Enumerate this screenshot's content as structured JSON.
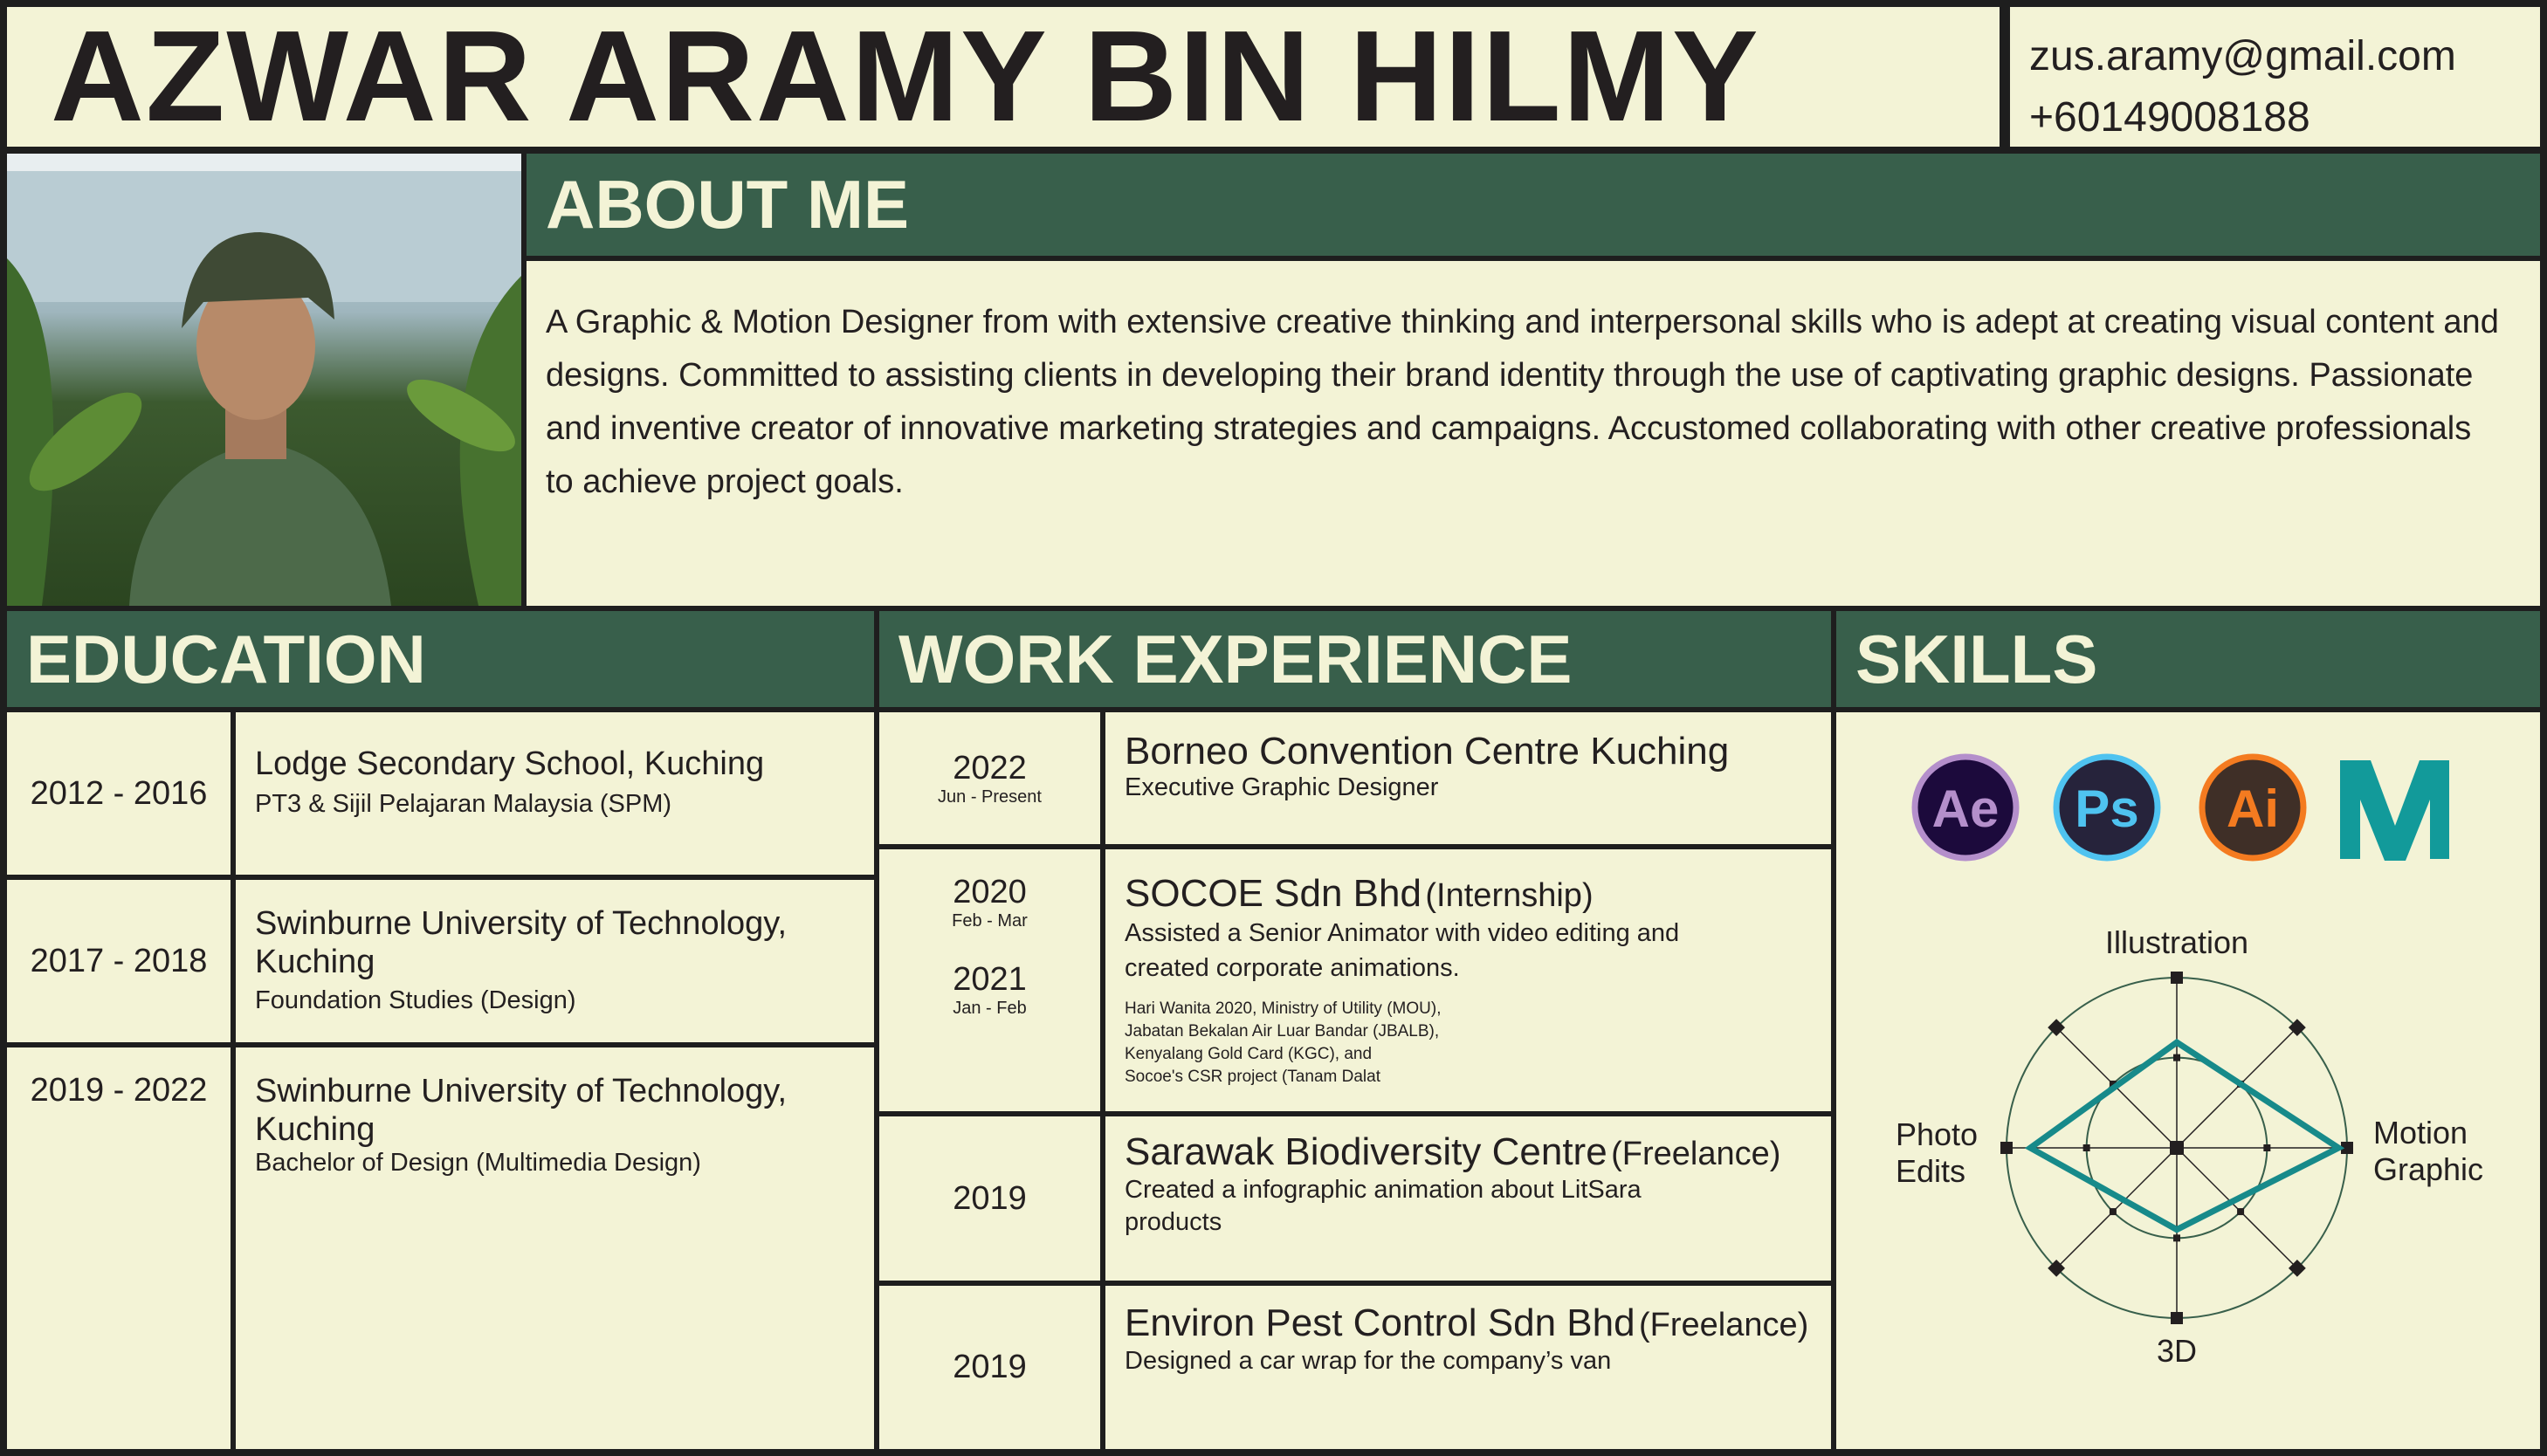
{
  "header": {
    "name": "AZWAR ARAMY BIN HILMY",
    "email": "zus.aramy@gmail.com",
    "phone": "+60149008188"
  },
  "about": {
    "title": "ABOUT ME",
    "text": "A Graphic & Motion Designer from with extensive creative thinking and interpersonal skills who is adept at creating visual content and designs. Committed to assisting clients in developing their brand identity through the use of captivating graphic designs.  Passionate and inventive creator of innovative marketing strategies and campaigns. Accustomed collaborating with other creative professionals to achieve project goals."
  },
  "education": {
    "title": "EDUCATION",
    "items": [
      {
        "years": "2012 - 2016",
        "school": "Lodge Secondary School, Kuching",
        "detail": "PT3 & Sijil Pelajaran Malaysia (SPM)"
      },
      {
        "years": "2017 - 2018",
        "school": "Swinburne University of Technology, Kuching",
        "detail": "Foundation Studies (Design)"
      },
      {
        "years": "2019 - 2022",
        "school": "Swinburne University of Technology, Kuching",
        "detail": "Bachelor of Design (Multimedia Design)"
      }
    ]
  },
  "work": {
    "title": "WORK EXPERIENCE",
    "items": [
      {
        "year": "2022",
        "period": "Jun - Present",
        "company": "Borneo Convention Centre Kuching",
        "type": "",
        "desc": "Executive Graphic Designer"
      },
      {
        "year": "2020",
        "period": "Feb - Mar",
        "year2": "2021",
        "period2": "Jan - Feb",
        "company": "SOCOE Sdn Bhd",
        "type": "(Internship)",
        "desc": "Assisted a Senior Animator with video editing and created corporate animations.",
        "projects": [
          "Hari Wanita 2020, Ministry of Utility (MOU),",
          "Jabatan Bekalan Air Luar Bandar (JBALB),",
          "Kenyalang Gold Card (KGC), and",
          "Socoe's CSR project (Tanam Dalat"
        ]
      },
      {
        "year": "2019",
        "company": "Sarawak Biodiversity Centre",
        "type": "(Freelance)",
        "desc": "Created a infographic animation about LitSara products"
      },
      {
        "year": "2019",
        "company": "Environ Pest Control Sdn Bhd",
        "type": "(Freelance)",
        "desc": "Designed a car wrap for the company’s van"
      }
    ]
  },
  "skills": {
    "title": "SKILLS",
    "software": [
      {
        "label": "Ae",
        "icon": "after-effects-icon",
        "bg": "#1c0a3c",
        "ring": "#b48fcb",
        "fg": "#b48fcb"
      },
      {
        "label": "Ps",
        "icon": "photoshop-icon",
        "bg": "#26233b",
        "ring": "#4fc3f0",
        "fg": "#4fc3f0"
      },
      {
        "label": "Ai",
        "icon": "illustrator-icon",
        "bg": "#3f2f27",
        "ring": "#f47b20",
        "fg": "#f47b20"
      }
    ],
    "maya_icon": "maya-icon",
    "chart_data": {
      "type": "radar",
      "axes": [
        "Illustration",
        "Motion Graphic",
        "3D",
        "Photo Edits"
      ],
      "values": [
        0.62,
        0.95,
        0.48,
        0.86
      ],
      "range": [
        0,
        1
      ],
      "color": "#178a8a"
    }
  }
}
